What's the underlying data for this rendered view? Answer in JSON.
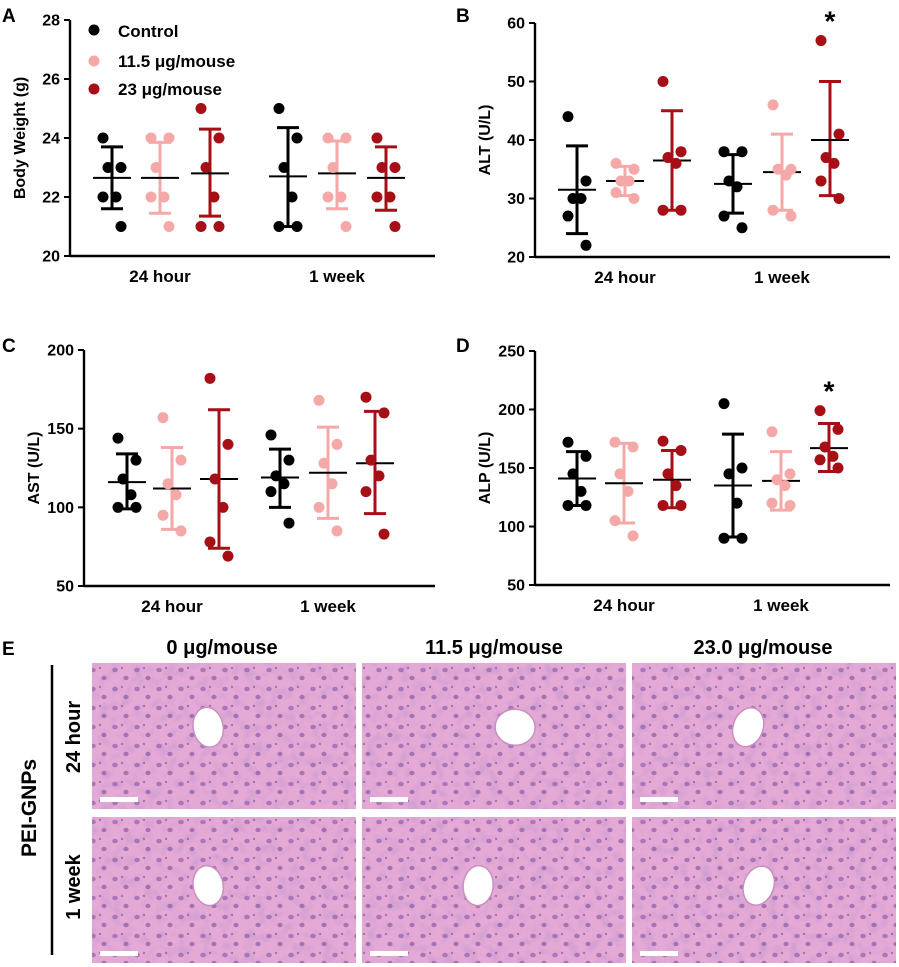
{
  "colors": {
    "control": "#000000",
    "low": "#f4a9a8",
    "high": "#a50f15",
    "tissue": "#e5a9d6",
    "nucleus": "#7a4f9a"
  },
  "chart_data": [
    {
      "panel": "A",
      "type": "scatter",
      "ylabel": "Body Weight (g)",
      "ylim": [
        20,
        28
      ],
      "yticks": [
        20,
        22,
        24,
        26,
        28
      ],
      "categories": [
        "24 hour",
        "1 week"
      ],
      "legend": [
        "Control",
        "11.5 μg/mouse",
        "23 μg/mouse"
      ],
      "series": [
        {
          "name": "Control",
          "color": "control",
          "groups": [
            {
              "points": [
                24,
                23,
                23,
                22,
                22,
                21
              ],
              "mean": 22.65,
              "sd_low": 21.6,
              "sd_high": 23.7
            },
            {
              "points": [
                25,
                24,
                23,
                22,
                21,
                21
              ],
              "mean": 22.7,
              "sd_low": 21.0,
              "sd_high": 24.35
            }
          ]
        },
        {
          "name": "11.5 μg/mouse",
          "color": "low",
          "groups": [
            {
              "points": [
                24,
                24,
                23,
                22,
                22,
                21
              ],
              "mean": 22.65,
              "sd_low": 21.45,
              "sd_high": 23.85
            },
            {
              "points": [
                24,
                24,
                23,
                22,
                22,
                21
              ],
              "mean": 22.8,
              "sd_low": 21.6,
              "sd_high": 23.9
            }
          ]
        },
        {
          "name": "23 μg/mouse",
          "color": "high",
          "groups": [
            {
              "points": [
                25,
                24,
                23,
                22,
                21,
                21
              ],
              "mean": 22.8,
              "sd_low": 21.35,
              "sd_high": 24.3
            },
            {
              "points": [
                24,
                23,
                23,
                22,
                22,
                21
              ],
              "mean": 22.65,
              "sd_low": 21.55,
              "sd_high": 23.7
            }
          ]
        }
      ]
    },
    {
      "panel": "B",
      "type": "scatter",
      "ylabel": "ALT (U/L)",
      "ylim": [
        20,
        60
      ],
      "yticks": [
        20,
        30,
        40,
        50,
        60
      ],
      "categories": [
        "24 hour",
        "1 week"
      ],
      "annotations": [
        {
          "text": "*",
          "series": 2,
          "group": 1
        }
      ],
      "series": [
        {
          "name": "Control",
          "color": "control",
          "groups": [
            {
              "points": [
                44,
                33,
                30,
                30,
                27,
                22
              ],
              "mean": 31.5,
              "sd_low": 24,
              "sd_high": 39
            },
            {
              "points": [
                38,
                38,
                33,
                32,
                27,
                25
              ],
              "mean": 32.5,
              "sd_low": 27.5,
              "sd_high": 37.5
            }
          ]
        },
        {
          "name": "11.5 μg/mouse",
          "color": "low",
          "groups": [
            {
              "points": [
                36,
                35,
                33,
                33,
                31,
                30
              ],
              "mean": 33,
              "sd_low": 30.5,
              "sd_high": 35.5
            },
            {
              "points": [
                46,
                35,
                35,
                34,
                28,
                27
              ],
              "mean": 34.5,
              "sd_low": 28,
              "sd_high": 41
            }
          ]
        },
        {
          "name": "23 μg/mouse",
          "color": "high",
          "groups": [
            {
              "points": [
                50,
                38,
                37,
                36,
                28,
                28
              ],
              "mean": 36.5,
              "sd_low": 28,
              "sd_high": 45
            },
            {
              "points": [
                57,
                41,
                37,
                36,
                33,
                30
              ],
              "mean": 40,
              "sd_low": 30.5,
              "sd_high": 50
            }
          ]
        }
      ]
    },
    {
      "panel": "C",
      "type": "scatter",
      "ylabel": "AST (U/L)",
      "ylim": [
        50,
        200
      ],
      "yticks": [
        50,
        100,
        150,
        200
      ],
      "categories": [
        "24 hour",
        "1 week"
      ],
      "series": [
        {
          "name": "Control",
          "color": "control",
          "groups": [
            {
              "points": [
                144,
                130,
                118,
                108,
                100,
                100
              ],
              "mean": 116,
              "sd_low": 99,
              "sd_high": 134
            },
            {
              "points": [
                146,
                130,
                120,
                115,
                110,
                90
              ],
              "mean": 119,
              "sd_low": 100,
              "sd_high": 137
            }
          ]
        },
        {
          "name": "11.5 μg/mouse",
          "color": "low",
          "groups": [
            {
              "points": [
                157,
                130,
                115,
                108,
                95,
                85
              ],
              "mean": 112,
              "sd_low": 86,
              "sd_high": 138
            },
            {
              "points": [
                168,
                140,
                128,
                115,
                100,
                85
              ],
              "mean": 122,
              "sd_low": 93,
              "sd_high": 151
            }
          ]
        },
        {
          "name": "23 μg/mouse",
          "color": "high",
          "groups": [
            {
              "points": [
                182,
                140,
                118,
                100,
                78,
                69
              ],
              "mean": 118,
              "sd_low": 74,
              "sd_high": 162
            },
            {
              "points": [
                170,
                160,
                130,
                120,
                110,
                83
              ],
              "mean": 128,
              "sd_low": 96,
              "sd_high": 161
            }
          ]
        }
      ]
    },
    {
      "panel": "D",
      "type": "scatter",
      "ylabel": "ALP (U/L)",
      "ylim": [
        50,
        250
      ],
      "yticks": [
        50,
        100,
        150,
        200,
        250
      ],
      "categories": [
        "24 hour",
        "1 week"
      ],
      "annotations": [
        {
          "text": "*",
          "series": 2,
          "group": 1
        }
      ],
      "series": [
        {
          "name": "Control",
          "color": "control",
          "groups": [
            {
              "points": [
                172,
                160,
                145,
                130,
                118,
                118
              ],
              "mean": 141,
              "sd_low": 118,
              "sd_high": 164
            },
            {
              "points": [
                205,
                150,
                145,
                120,
                90,
                90
              ],
              "mean": 135,
              "sd_low": 91,
              "sd_high": 179
            }
          ]
        },
        {
          "name": "11.5 μg/mouse",
          "color": "low",
          "groups": [
            {
              "points": [
                172,
                168,
                145,
                130,
                105,
                92
              ],
              "mean": 137,
              "sd_low": 103,
              "sd_high": 171
            },
            {
              "points": [
                181,
                145,
                140,
                135,
                120,
                118
              ],
              "mean": 139,
              "sd_low": 114,
              "sd_high": 164
            }
          ]
        },
        {
          "name": "23 μg/mouse",
          "color": "high",
          "groups": [
            {
              "points": [
                173,
                165,
                145,
                135,
                118,
                118
              ],
              "mean": 140,
              "sd_low": 116,
              "sd_high": 165
            },
            {
              "points": [
                199,
                183,
                168,
                160,
                157,
                150
              ],
              "mean": 167,
              "sd_low": 147,
              "sd_high": 188
            }
          ]
        }
      ]
    }
  ],
  "histology": {
    "panel_label": "E",
    "row_group_label": "PEI-GNPs",
    "columns": [
      "0 μg/mouse",
      "11.5 μg/mouse",
      "23.0 μg/mouse"
    ],
    "rows": [
      "24 hour",
      "1 week"
    ]
  }
}
